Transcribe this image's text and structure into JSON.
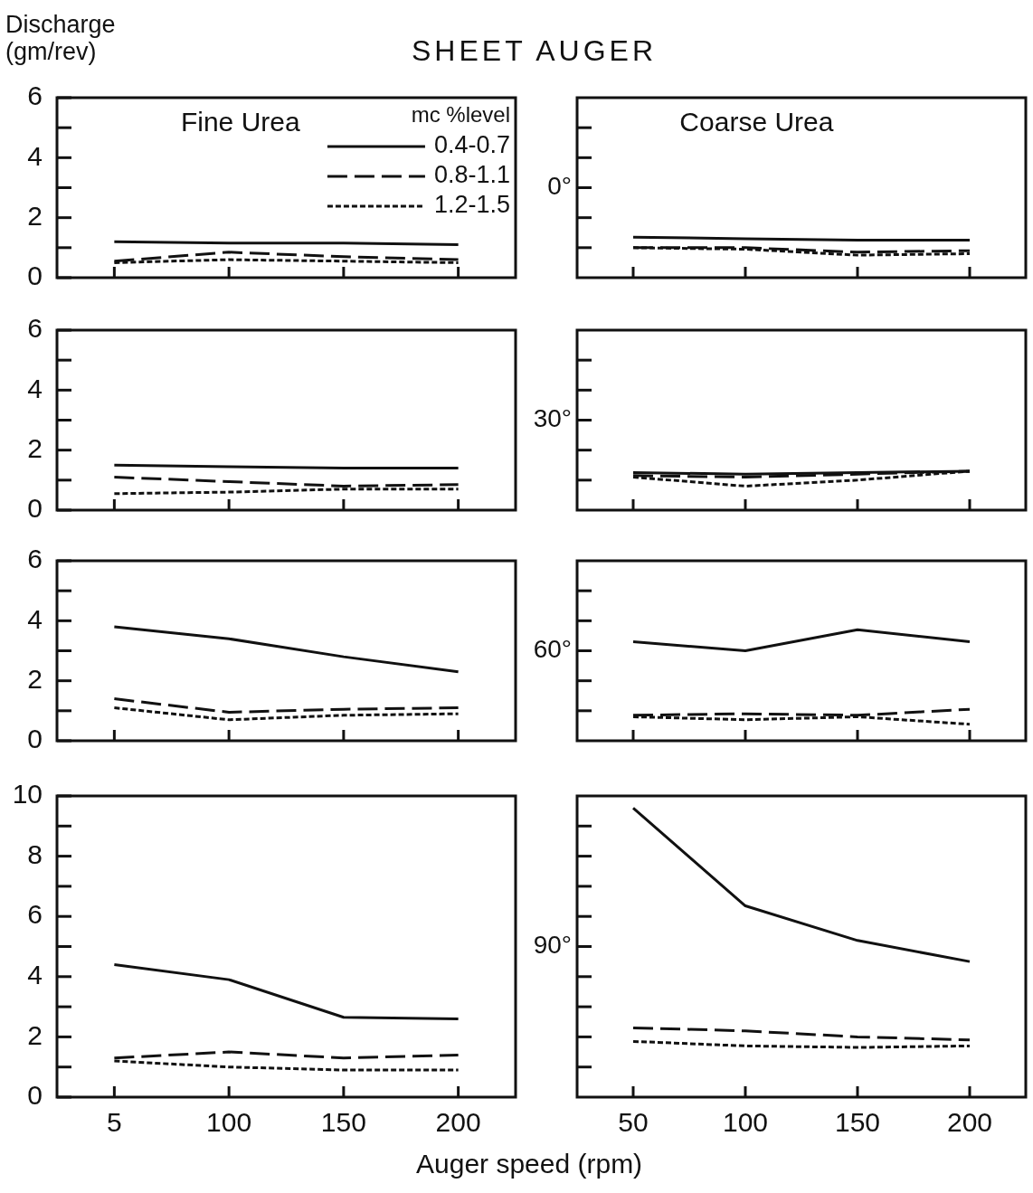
{
  "chart_data": [
    {
      "type": "line",
      "title": "SHEET AUGER",
      "ylabel": "Discharge\n(gm/rev)",
      "annotations": [
        "Fine Urea"
      ],
      "legend": "top right",
      "legend_title": "mc %level",
      "tick_labels": "y",
      "categories": [
        "5",
        "100",
        "150",
        "200"
      ],
      "ylim": [
        0,
        6
      ],
      "yticks": [
        0,
        {
          "value": 1,
          "label": null
        },
        2,
        {
          "value": 3,
          "label": null
        },
        4,
        {
          "value": 5,
          "label": null
        },
        6
      ],
      "series": [
        {
          "name": "0.4-0.7",
          "color": "#111111",
          "line_style": "solid",
          "values": [
            1.2,
            1.15,
            1.15,
            1.1
          ]
        },
        {
          "name": "0.8-1.1",
          "color": "#111111",
          "line_style": "dashed",
          "values": [
            0.55,
            0.85,
            0.7,
            0.6
          ]
        },
        {
          "name": "1.2-1.5",
          "color": "#111111",
          "line_style": "dotted",
          "values": [
            0.5,
            0.6,
            0.55,
            0.5
          ]
        }
      ]
    },
    {
      "type": "line",
      "ylabel": "0°",
      "annotations": [
        "Coarse Urea"
      ],
      "tick_labels": false,
      "categories": [
        "50",
        "100",
        "150",
        "200"
      ],
      "ylim": [
        0,
        6
      ],
      "yticks": [
        {
          "value": 1,
          "label": null
        },
        {
          "value": 2,
          "label": null
        },
        {
          "value": 3,
          "label": null
        },
        {
          "value": 4,
          "label": null
        },
        {
          "value": 5,
          "label": null
        }
      ],
      "series": [
        {
          "color": "#111111",
          "line_style": "solid",
          "values": [
            1.35,
            1.3,
            1.25,
            1.25
          ]
        },
        {
          "color": "#111111",
          "line_style": "dashed",
          "values": [
            1.0,
            1.0,
            0.85,
            0.9
          ]
        },
        {
          "color": "#111111",
          "line_style": "dotted",
          "values": [
            1.0,
            0.95,
            0.75,
            0.8
          ]
        }
      ]
    },
    {
      "type": "line",
      "tick_labels": "y",
      "categories": [
        "5",
        "100",
        "150",
        "200"
      ],
      "ylim": [
        0,
        6
      ],
      "yticks": [
        0,
        {
          "value": 1,
          "label": null
        },
        2,
        {
          "value": 3,
          "label": null
        },
        4,
        {
          "value": 5,
          "label": null
        },
        6
      ],
      "series": [
        {
          "color": "#111111",
          "line_style": "solid",
          "values": [
            1.5,
            1.45,
            1.4,
            1.4
          ]
        },
        {
          "color": "#111111",
          "line_style": "dashed",
          "values": [
            1.1,
            0.95,
            0.8,
            0.85
          ]
        },
        {
          "color": "#111111",
          "line_style": "dotted",
          "values": [
            0.55,
            0.6,
            0.7,
            0.7
          ]
        }
      ]
    },
    {
      "type": "line",
      "ylabel": "30°",
      "tick_labels": false,
      "categories": [
        "50",
        "100",
        "150",
        "200"
      ],
      "ylim": [
        0,
        6
      ],
      "yticks": [
        {
          "value": 1,
          "label": null
        },
        {
          "value": 2,
          "label": null
        },
        {
          "value": 3,
          "label": null
        },
        {
          "value": 4,
          "label": null
        },
        {
          "value": 5,
          "label": null
        }
      ],
      "series": [
        {
          "color": "#111111",
          "line_style": "solid",
          "values": [
            1.25,
            1.2,
            1.25,
            1.3
          ]
        },
        {
          "color": "#111111",
          "line_style": "dashed",
          "values": [
            1.15,
            1.1,
            1.2,
            1.3
          ]
        },
        {
          "color": "#111111",
          "line_style": "dotted",
          "values": [
            1.1,
            0.8,
            1.0,
            1.3
          ]
        }
      ]
    },
    {
      "type": "line",
      "tick_labels": "y",
      "categories": [
        "5",
        "100",
        "150",
        "200"
      ],
      "ylim": [
        0,
        6
      ],
      "yticks": [
        0,
        {
          "value": 1,
          "label": null
        },
        2,
        {
          "value": 3,
          "label": null
        },
        4,
        {
          "value": 5,
          "label": null
        },
        6
      ],
      "series": [
        {
          "color": "#111111",
          "line_style": "solid",
          "values": [
            3.8,
            3.4,
            2.8,
            2.3
          ]
        },
        {
          "color": "#111111",
          "line_style": "dashed",
          "values": [
            1.4,
            0.95,
            1.05,
            1.1
          ]
        },
        {
          "color": "#111111",
          "line_style": "dotted",
          "values": [
            1.1,
            0.7,
            0.85,
            0.9
          ]
        }
      ]
    },
    {
      "type": "line",
      "ylabel": "60°",
      "tick_labels": false,
      "categories": [
        "50",
        "100",
        "150",
        "200"
      ],
      "ylim": [
        0,
        6
      ],
      "yticks": [
        {
          "value": 1,
          "label": null
        },
        {
          "value": 2,
          "label": null
        },
        {
          "value": 3,
          "label": null
        },
        {
          "value": 4,
          "label": null
        },
        {
          "value": 5,
          "label": null
        }
      ],
      "series": [
        {
          "color": "#111111",
          "line_style": "solid",
          "values": [
            3.3,
            3.0,
            3.7,
            3.3
          ]
        },
        {
          "color": "#111111",
          "line_style": "dashed",
          "values": [
            0.85,
            0.9,
            0.85,
            1.05
          ]
        },
        {
          "color": "#111111",
          "line_style": "dotted",
          "values": [
            0.8,
            0.7,
            0.8,
            0.55
          ]
        }
      ]
    },
    {
      "type": "line",
      "xlabel": "Auger speed (rpm)",
      "categories": [
        "5",
        "100",
        "150",
        "200"
      ],
      "ylim": [
        0,
        10
      ],
      "yticks": [
        0,
        {
          "value": 1,
          "label": null
        },
        2,
        {
          "value": 3,
          "label": null
        },
        4,
        {
          "value": 5,
          "label": null
        },
        6,
        {
          "value": 7,
          "label": null
        },
        8,
        {
          "value": 9,
          "label": null
        },
        10
      ],
      "series": [
        {
          "color": "#111111",
          "line_style": "solid",
          "values": [
            4.4,
            3.9,
            2.65,
            2.6
          ]
        },
        {
          "color": "#111111",
          "line_style": "dashed",
          "values": [
            1.3,
            1.5,
            1.3,
            1.4
          ]
        },
        {
          "color": "#111111",
          "line_style": "dotted",
          "values": [
            1.2,
            1.0,
            0.9,
            0.9
          ]
        }
      ]
    },
    {
      "type": "line",
      "ylabel": "90°",
      "tick_labels": "x",
      "categories": [
        "50",
        "100",
        "150",
        "200"
      ],
      "ylim": [
        0,
        10
      ],
      "yticks": [
        {
          "value": 1,
          "label": null
        },
        {
          "value": 2,
          "label": null
        },
        {
          "value": 3,
          "label": null
        },
        {
          "value": 4,
          "label": null
        },
        {
          "value": 5,
          "label": null
        },
        {
          "value": 6,
          "label": null
        },
        {
          "value": 7,
          "label": null
        },
        {
          "value": 8,
          "label": null
        },
        {
          "value": 9,
          "label": null
        }
      ],
      "series": [
        {
          "color": "#111111",
          "line_style": "solid",
          "values": [
            9.6,
            6.35,
            5.2,
            4.5
          ]
        },
        {
          "color": "#111111",
          "line_style": "dashed",
          "values": [
            2.3,
            2.2,
            2.0,
            1.9
          ]
        },
        {
          "color": "#111111",
          "line_style": "dotted",
          "values": [
            1.85,
            1.7,
            1.65,
            1.7
          ]
        }
      ]
    }
  ]
}
